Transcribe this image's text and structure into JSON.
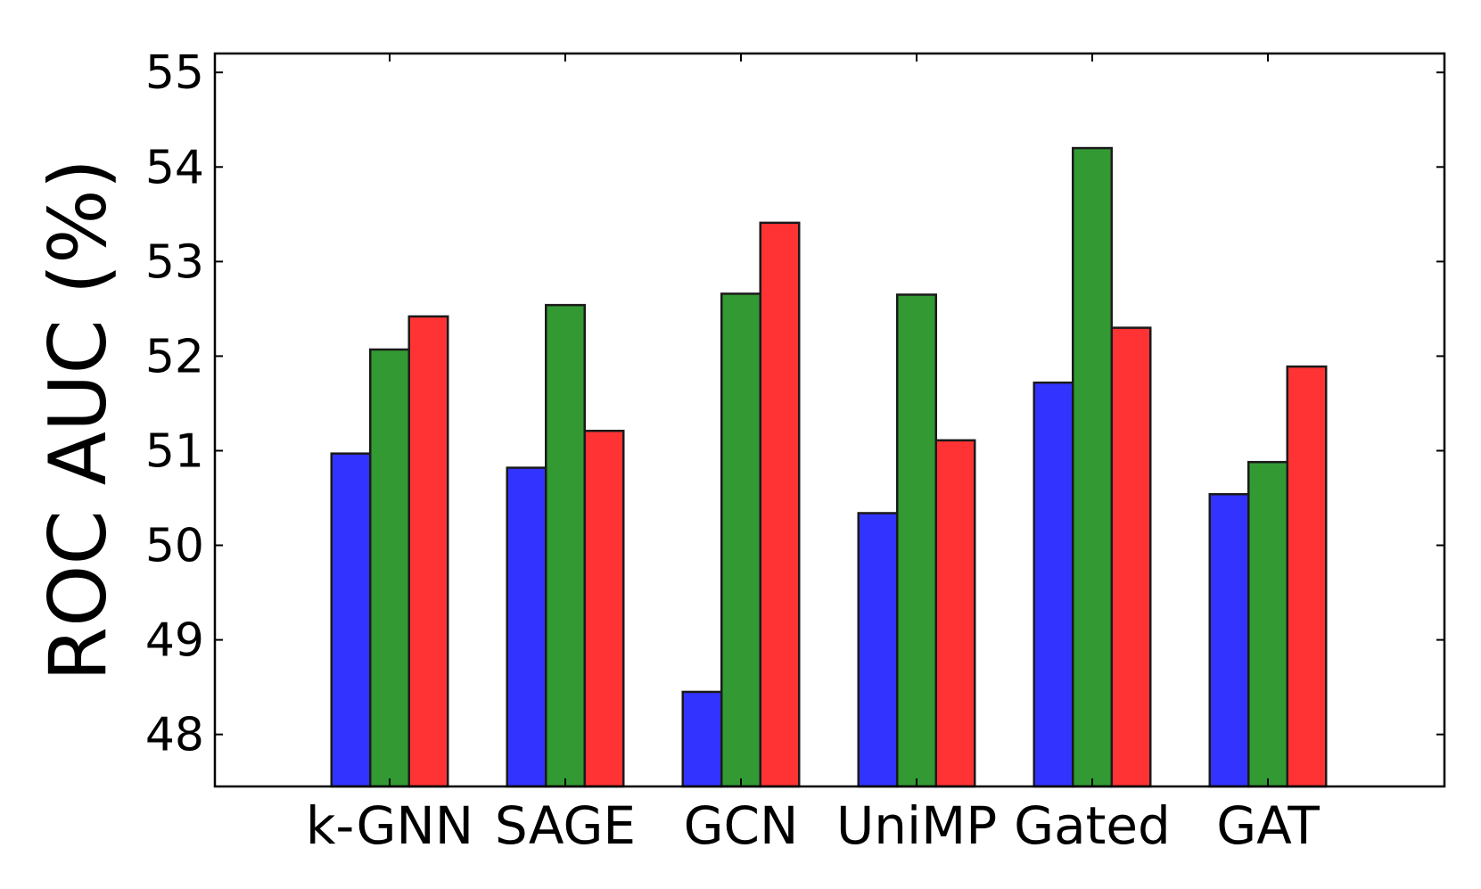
{
  "chart_data": {
    "type": "bar",
    "title": "",
    "xlabel": "",
    "ylabel": "ROC AUC (%)",
    "ylim": [
      47.45,
      55.2
    ],
    "yticks": [
      48,
      49,
      50,
      51,
      52,
      53,
      54,
      55
    ],
    "grid": false,
    "legend": "none",
    "categories": [
      "k-GNN",
      "SAGE",
      "GCN",
      "UniMP",
      "Gated",
      "GAT"
    ],
    "series": [
      {
        "color": "#3333ff",
        "values": [
          50.97,
          50.82,
          48.45,
          50.34,
          51.72,
          50.54
        ]
      },
      {
        "color": "#339933",
        "values": [
          52.07,
          52.54,
          52.66,
          52.65,
          54.2,
          50.88
        ]
      },
      {
        "color": "#ff3333",
        "values": [
          52.42,
          51.21,
          53.41,
          51.11,
          52.3,
          51.89
        ]
      }
    ]
  }
}
